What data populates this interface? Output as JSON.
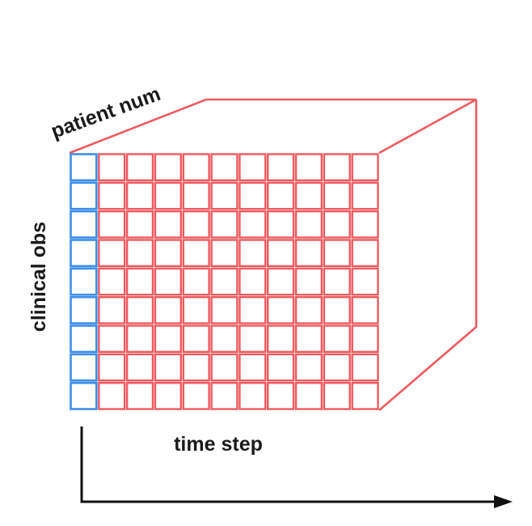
{
  "labels": {
    "depth": "patient num",
    "rows": "clinical obs",
    "columns": "time step"
  },
  "grid": {
    "rows": 9,
    "columns": 11,
    "highlighted_column": 0
  },
  "colors": {
    "grid": "#ee5a5f",
    "highlight": "#3c8ee8",
    "arrow": "#111111",
    "text": "#1a1a1a"
  }
}
